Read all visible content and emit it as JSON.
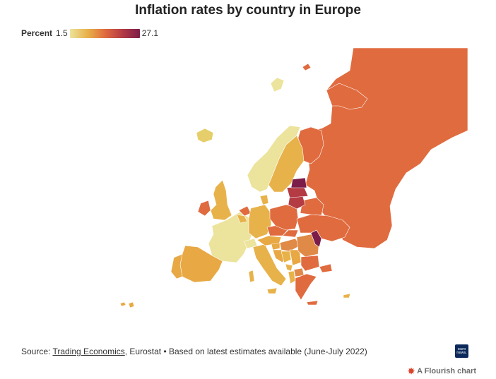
{
  "title": "Inflation rates by country in Europe",
  "legend": {
    "label": "Percent",
    "min": "1.5",
    "max": "27.1"
  },
  "scale_colors": [
    "#ece39c",
    "#e8b24a",
    "#e06b3f",
    "#b43a43",
    "#7c1d49"
  ],
  "footer": {
    "prefix": "Source: ",
    "link1": "Trading Economics",
    "sep": ", ",
    "rest": "Eurostat • Based on latest estimates available (June-July 2022)"
  },
  "logo_text": [
    "euro",
    "news."
  ],
  "credit": "A Flourish chart"
}
